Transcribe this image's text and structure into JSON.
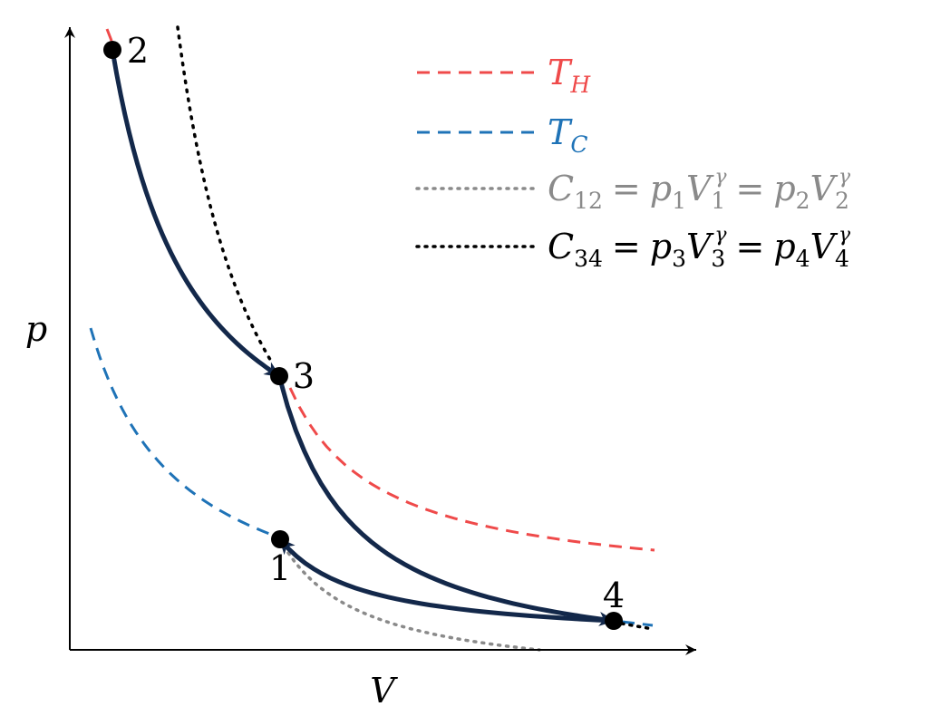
{
  "axes": {
    "x_label": "V",
    "y_label": "p"
  },
  "points": [
    {
      "id": "1",
      "label": "1"
    },
    {
      "id": "2",
      "label": "2"
    },
    {
      "id": "3",
      "label": "3"
    },
    {
      "id": "4",
      "label": "4"
    }
  ],
  "legend": [
    {
      "key": "T_H",
      "symbol": "T",
      "sub": "H",
      "color": "#ef4a4a",
      "style": "dashed"
    },
    {
      "key": "T_C",
      "symbol": "T",
      "sub": "C",
      "color": "#1f73b7",
      "style": "dashed"
    },
    {
      "key": "C12",
      "sym": "C",
      "sub": "12",
      "eq": "=",
      "p1": "p",
      "p1s": "1",
      "v1": "V",
      "v1s": "1",
      "exp": "γ",
      "eq2": "=",
      "p2": "p",
      "p2s": "2",
      "v2": "V",
      "v2s": "2",
      "exp2": "γ",
      "color": "#8a8a8a",
      "style": "dotted"
    },
    {
      "key": "C34",
      "sym": "C",
      "sub": "34",
      "eq": "=",
      "p1": "p",
      "p1s": "3",
      "v1": "V",
      "v1s": "3",
      "exp": "γ",
      "eq2": "=",
      "p2": "p",
      "p2s": "4",
      "v2": "V",
      "v2s": "4",
      "exp2": "γ",
      "color": "#000000",
      "style": "dotted"
    }
  ],
  "colors": {
    "cycle_fill": "#aeeeff",
    "cycle_stroke": "#13284a",
    "hot": "#ef4a4a",
    "cold": "#1f73b7",
    "adiabat12": "#8a8a8a",
    "adiabat34": "#000000"
  }
}
